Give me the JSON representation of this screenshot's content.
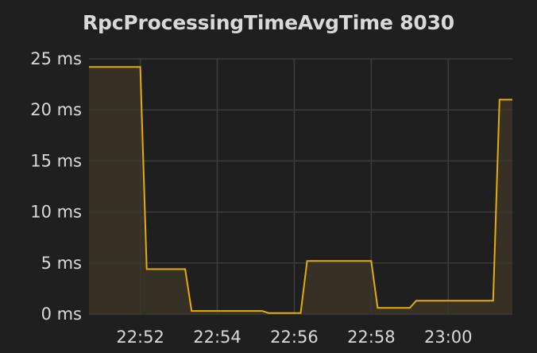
{
  "chart_data": {
    "type": "area",
    "title": "RpcProcessingTimeAvgTime 8030",
    "xlabel": "",
    "ylabel": "",
    "y_unit": "ms",
    "ylim": [
      0,
      25
    ],
    "xlim": [
      "22:50:40",
      "23:01:40"
    ],
    "y_ticks": [
      "25 ms",
      "20 ms",
      "15 ms",
      "10 ms",
      "5 ms",
      "0 ms"
    ],
    "x_ticks": [
      "22:52",
      "22:54",
      "22:56",
      "22:58",
      "23:00"
    ],
    "grid": true,
    "legend": "none",
    "colors": {
      "background": "#1f1f20",
      "grid": "#3b3b3d",
      "line": "#e5ac0e",
      "fill": "#3a3226",
      "text": "#d8d9da"
    },
    "series": [
      {
        "x": [
          "22:50:40",
          "22:52:00",
          "22:52:10",
          "22:53:10",
          "22:53:20",
          "22:55:10",
          "22:55:20",
          "22:56:10",
          "22:56:20",
          "22:58:00",
          "22:58:10",
          "22:59:00",
          "22:59:10",
          "23:01:10",
          "23:01:20",
          "23:01:40"
        ],
        "y": [
          24.2,
          24.2,
          4.4,
          4.4,
          0.3,
          0.3,
          0.1,
          0.1,
          5.2,
          5.2,
          0.6,
          0.6,
          1.3,
          1.3,
          21.0,
          21.0
        ]
      }
    ]
  }
}
